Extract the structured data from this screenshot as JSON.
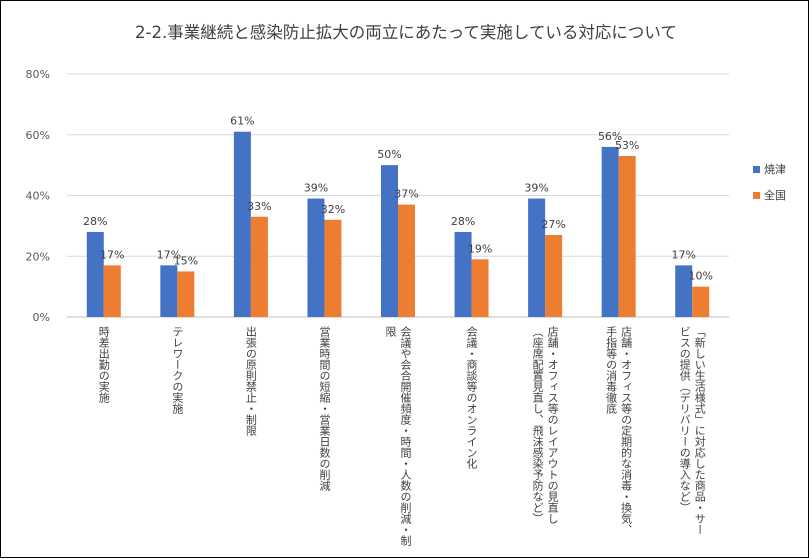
{
  "chart_data": {
    "type": "bar",
    "title": "2-2.事業継続と感染防止拡大の両立にあたって実施している対応について",
    "xlabel": "",
    "ylabel": "",
    "ylim": [
      0,
      0.8
    ],
    "yticks": [
      "0%",
      "20%",
      "40%",
      "60%",
      "80%"
    ],
    "grid": true,
    "legend_position": "right",
    "categories": [
      [
        "時差出勤の実施"
      ],
      [
        "テレワークの実施"
      ],
      [
        "出張の原則禁止・制限"
      ],
      [
        "営業時間の短縮・営業日数の削減"
      ],
      [
        "会議や会合開催頻度・時間・人数の削減・制",
        "限"
      ],
      [
        "会議・商談等のオンライン化"
      ],
      [
        "店舗・オフィス等のレイアウトの見直し",
        "（座席配置見直し、飛沫感染予防など）"
      ],
      [
        "店舗・オフィス等の定期的な消毒・換気、",
        "手指等の消毒徹底"
      ],
      [
        "「新しい生活様式」に対応した商品・サー",
        "ビスの提供（デリバリーの導入など）"
      ]
    ],
    "series": [
      {
        "name": "焼津",
        "color": "#4472C4",
        "values": [
          0.28,
          0.17,
          0.61,
          0.39,
          0.5,
          0.28,
          0.39,
          0.56,
          0.17
        ],
        "labels": [
          "28%",
          "17%",
          "61%",
          "39%",
          "50%",
          "28%",
          "39%",
          "56%",
          "17%"
        ]
      },
      {
        "name": "全国",
        "color": "#ED7D31",
        "values": [
          0.17,
          0.15,
          0.33,
          0.32,
          0.37,
          0.19,
          0.27,
          0.53,
          0.1
        ],
        "labels": [
          "17%",
          "15%",
          "33%",
          "32%",
          "37%",
          "19%",
          "27%",
          "53%",
          "10%"
        ]
      }
    ]
  }
}
